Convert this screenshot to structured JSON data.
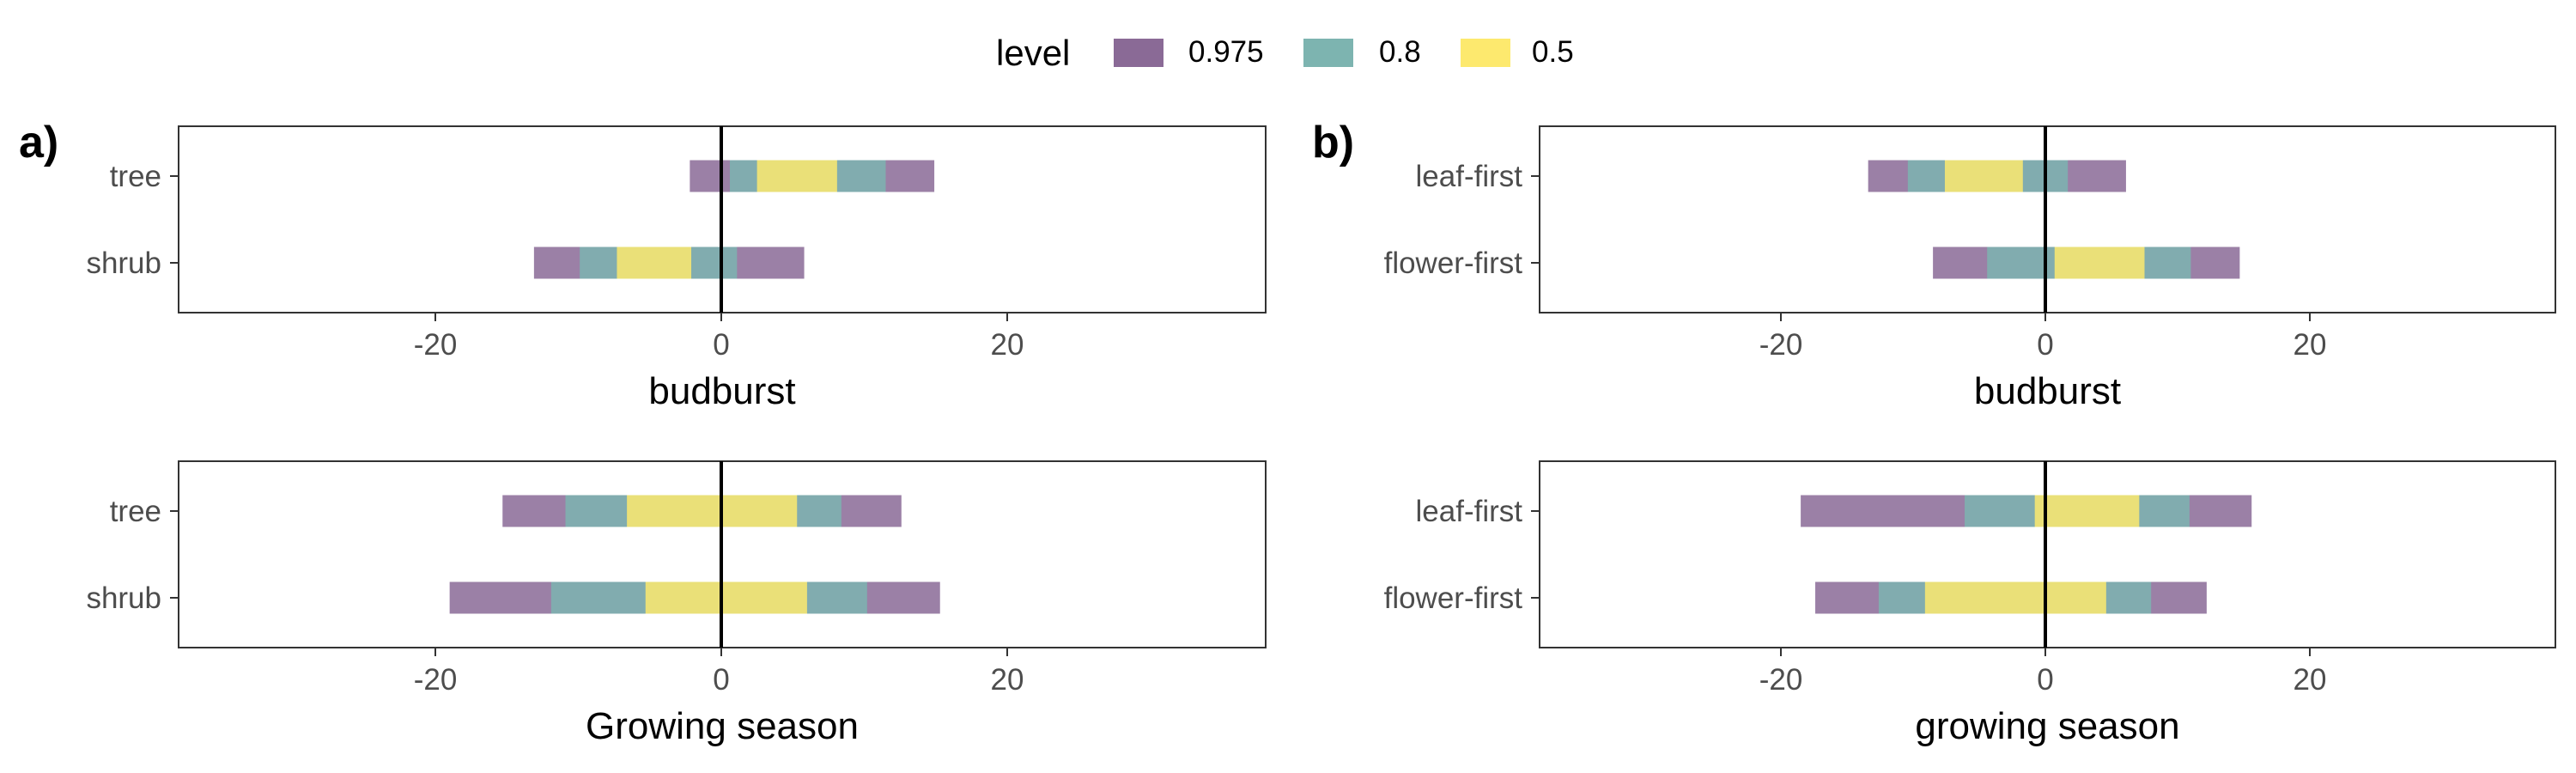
{
  "legend": {
    "title": "level",
    "items": [
      {
        "label": "0.975",
        "color": "#8a6a96"
      },
      {
        "label": "0.8",
        "color": "#7db4b0"
      },
      {
        "label": "0.5",
        "color": "#fde96e"
      }
    ]
  },
  "panel_labels": [
    "a)",
    "b)"
  ],
  "chart_data": [
    {
      "type": "interval",
      "panel": "a)",
      "xlabel": "budburst",
      "xlim": [
        -38,
        38
      ],
      "xticks": [
        -20,
        0,
        20
      ],
      "categories": [
        "tree",
        "shrub"
      ],
      "intervals": [
        {
          "category": "tree",
          "0.975": [
            -2.2,
            14.9
          ],
          "0.8": [
            0.6,
            11.5
          ],
          "0.5": [
            2.5,
            8.1
          ]
        },
        {
          "category": "shrub",
          "0.975": [
            -13.1,
            5.8
          ],
          "0.8": [
            -9.9,
            1.1
          ],
          "0.5": [
            -7.3,
            -2.1
          ]
        }
      ]
    },
    {
      "type": "interval",
      "xlabel": "budburst",
      "xlim": [
        -38,
        38
      ],
      "xticks": [
        -20,
        0,
        20
      ],
      "panel": "b)",
      "categories": [
        "leaf-first",
        "flower-first"
      ],
      "intervals": [
        {
          "category": "leaf-first",
          "0.975": [
            -13.4,
            6.1
          ],
          "0.8": [
            -10.4,
            1.7
          ],
          "0.5": [
            -7.6,
            -1.7
          ]
        },
        {
          "category": "flower-first",
          "0.975": [
            -8.5,
            14.7
          ],
          "0.8": [
            -4.4,
            11.0
          ],
          "0.5": [
            0.7,
            7.5
          ]
        }
      ]
    },
    {
      "type": "interval",
      "panel": "a)",
      "xlabel": "Growing season",
      "xlim": [
        -38,
        38
      ],
      "xticks": [
        -20,
        0,
        20
      ],
      "categories": [
        "tree",
        "shrub"
      ],
      "intervals": [
        {
          "category": "tree",
          "0.975": [
            -15.3,
            12.6
          ],
          "0.8": [
            -10.9,
            8.4
          ],
          "0.5": [
            -6.6,
            5.3
          ]
        },
        {
          "category": "shrub",
          "0.975": [
            -19.0,
            15.3
          ],
          "0.8": [
            -11.9,
            10.2
          ],
          "0.5": [
            -5.3,
            6.0
          ]
        }
      ]
    },
    {
      "type": "interval",
      "panel": "b)",
      "xlabel": "growing season",
      "xlim": [
        -38,
        38
      ],
      "xticks": [
        -20,
        0,
        20
      ],
      "categories": [
        "leaf-first",
        "flower-first"
      ],
      "intervals": [
        {
          "category": "leaf-first",
          "0.975": [
            -18.5,
            15.6
          ],
          "0.8": [
            -6.1,
            10.9
          ],
          "0.5": [
            -0.8,
            7.1
          ]
        },
        {
          "category": "flower-first",
          "0.975": [
            -17.4,
            12.2
          ],
          "0.8": [
            -12.6,
            8.0
          ],
          "0.5": [
            -9.1,
            4.6
          ]
        }
      ]
    }
  ]
}
